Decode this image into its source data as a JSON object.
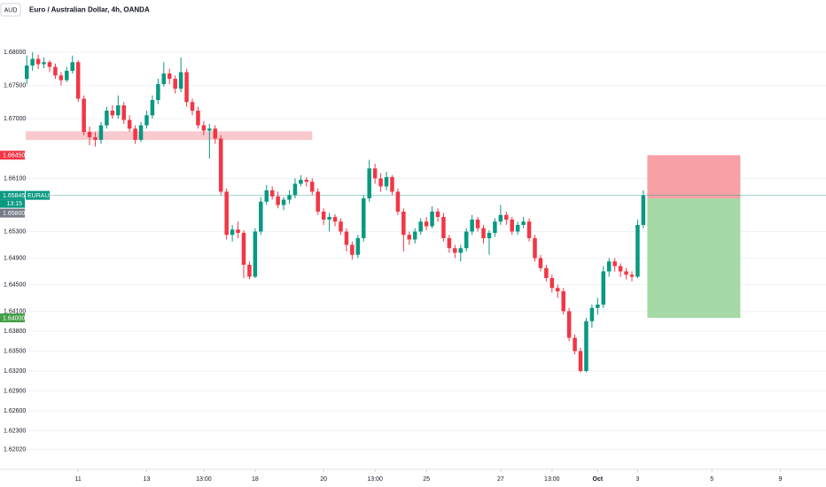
{
  "chart_data": {
    "type": "candlestick",
    "currency": "AUD",
    "title": "Euro / Australian Dollar, 4h, OANDA",
    "up_color": "#089981",
    "down_color": "#f23645",
    "grid": true,
    "ylim": [
      1.6172,
      1.6852
    ],
    "yticks": [
      {
        "value": 1.68,
        "label": "1.68000"
      },
      {
        "value": 1.675,
        "label": "1.67500"
      },
      {
        "value": 1.67,
        "label": "1.67000"
      },
      {
        "value": 1.661,
        "label": "1.66100"
      },
      {
        "value": 1.653,
        "label": "1.65300"
      },
      {
        "value": 1.649,
        "label": "1.64900"
      },
      {
        "value": 1.645,
        "label": "1.64500"
      },
      {
        "value": 1.641,
        "label": "1.64100"
      },
      {
        "value": 1.638,
        "label": "1.63800"
      },
      {
        "value": 1.635,
        "label": "1.63500"
      },
      {
        "value": 1.632,
        "label": "1.63200"
      },
      {
        "value": 1.629,
        "label": "1.62900"
      },
      {
        "value": 1.626,
        "label": "1.62600"
      },
      {
        "value": 1.623,
        "label": "1.62300"
      },
      {
        "value": 1.6202,
        "label": "1.62020"
      }
    ],
    "xlim": [
      -0.5,
      140
    ],
    "xticks": [
      {
        "value": 9,
        "label": "11"
      },
      {
        "value": 21,
        "label": "13"
      },
      {
        "value": 31,
        "label": "13:00"
      },
      {
        "value": 40,
        "label": "18"
      },
      {
        "value": 52,
        "label": "20"
      },
      {
        "value": 61,
        "label": "13:00"
      },
      {
        "value": 70,
        "label": "25"
      },
      {
        "value": 83,
        "label": "27"
      },
      {
        "value": 92,
        "label": "13:00"
      },
      {
        "value": 100,
        "label": "Oct"
      },
      {
        "value": 107,
        "label": "3"
      },
      {
        "value": 120,
        "label": "5"
      },
      {
        "value": 132,
        "label": "9"
      }
    ],
    "candles": [
      [
        1.676,
        1.6795,
        1.6752,
        1.678
      ],
      [
        1.678,
        1.68,
        1.6772,
        1.679
      ],
      [
        1.679,
        1.6796,
        1.6775,
        1.6782
      ],
      [
        1.6782,
        1.6792,
        1.6776,
        1.6785
      ],
      [
        1.6785,
        1.6788,
        1.677,
        1.6778
      ],
      [
        1.6778,
        1.6783,
        1.676,
        1.6765
      ],
      [
        1.6765,
        1.677,
        1.675,
        1.6758
      ],
      [
        1.6758,
        1.6778,
        1.6755,
        1.6772
      ],
      [
        1.6772,
        1.6795,
        1.6768,
        1.6785
      ],
      [
        1.6785,
        1.6788,
        1.6725,
        1.673
      ],
      [
        1.673,
        1.6735,
        1.6675,
        1.668
      ],
      [
        1.668,
        1.6688,
        1.666,
        1.6672
      ],
      [
        1.6672,
        1.668,
        1.6658,
        1.6668
      ],
      [
        1.6668,
        1.6695,
        1.6662,
        1.669
      ],
      [
        1.669,
        1.6718,
        1.6685,
        1.6712
      ],
      [
        1.6712,
        1.672,
        1.67,
        1.6705
      ],
      [
        1.6705,
        1.6735,
        1.67,
        1.672
      ],
      [
        1.672,
        1.6725,
        1.6692,
        1.6698
      ],
      [
        1.6698,
        1.6705,
        1.668,
        1.6685
      ],
      [
        1.6685,
        1.669,
        1.6662,
        1.6668
      ],
      [
        1.6668,
        1.6695,
        1.6665,
        1.669
      ],
      [
        1.669,
        1.6712,
        1.6685,
        1.6705
      ],
      [
        1.6705,
        1.6735,
        1.67,
        1.6728
      ],
      [
        1.6728,
        1.676,
        1.6722,
        1.6752
      ],
      [
        1.6752,
        1.6785,
        1.6748,
        1.6768
      ],
      [
        1.6768,
        1.6775,
        1.6752,
        1.676
      ],
      [
        1.676,
        1.6765,
        1.6738,
        1.6745
      ],
      [
        1.6745,
        1.6792,
        1.674,
        1.677
      ],
      [
        1.677,
        1.6775,
        1.6718,
        1.6725
      ],
      [
        1.6725,
        1.673,
        1.6705,
        1.6712
      ],
      [
        1.6712,
        1.6718,
        1.6685,
        1.669
      ],
      [
        1.669,
        1.6696,
        1.6675,
        1.6682
      ],
      [
        1.6682,
        1.6692,
        1.664,
        1.6685
      ],
      [
        1.6685,
        1.669,
        1.6662,
        1.667
      ],
      [
        1.667,
        1.6675,
        1.6585,
        1.659
      ],
      [
        1.659,
        1.6595,
        1.6518,
        1.6525
      ],
      [
        1.6525,
        1.654,
        1.6515,
        1.6533
      ],
      [
        1.6533,
        1.6545,
        1.652,
        1.6528
      ],
      [
        1.6528,
        1.6532,
        1.646,
        1.648
      ],
      [
        1.648,
        1.6485,
        1.6458,
        1.6462
      ],
      [
        1.6462,
        1.6535,
        1.646,
        1.653
      ],
      [
        1.653,
        1.6582,
        1.6525,
        1.6575
      ],
      [
        1.6575,
        1.66,
        1.657,
        1.6592
      ],
      [
        1.6592,
        1.6598,
        1.6578,
        1.6583
      ],
      [
        1.6583,
        1.659,
        1.6565,
        1.657
      ],
      [
        1.657,
        1.6582,
        1.6562,
        1.6578
      ],
      [
        1.6578,
        1.6592,
        1.6572,
        1.6585
      ],
      [
        1.6585,
        1.661,
        1.658,
        1.6602
      ],
      [
        1.6602,
        1.6615,
        1.6598,
        1.6608
      ],
      [
        1.6608,
        1.6612,
        1.6598,
        1.6605
      ],
      [
        1.6605,
        1.661,
        1.6585,
        1.659
      ],
      [
        1.659,
        1.6595,
        1.6555,
        1.656
      ],
      [
        1.656,
        1.6565,
        1.654,
        1.6548
      ],
      [
        1.6548,
        1.6558,
        1.653,
        1.6552
      ],
      [
        1.6552,
        1.6556,
        1.6538,
        1.6545
      ],
      [
        1.6545,
        1.655,
        1.6525,
        1.653
      ],
      [
        1.653,
        1.6535,
        1.65,
        1.651
      ],
      [
        1.651,
        1.6515,
        1.6488,
        1.6495
      ],
      [
        1.6495,
        1.6525,
        1.649,
        1.652
      ],
      [
        1.652,
        1.6585,
        1.6515,
        1.658
      ],
      [
        1.658,
        1.6638,
        1.6575,
        1.6625
      ],
      [
        1.6625,
        1.6632,
        1.6602,
        1.661
      ],
      [
        1.661,
        1.6618,
        1.659,
        1.6598
      ],
      [
        1.6598,
        1.662,
        1.6592,
        1.6612
      ],
      [
        1.6612,
        1.6615,
        1.6585,
        1.659
      ],
      [
        1.659,
        1.6595,
        1.6555,
        1.656
      ],
      [
        1.656,
        1.6565,
        1.65,
        1.6525
      ],
      [
        1.6525,
        1.653,
        1.651,
        1.6518
      ],
      [
        1.6518,
        1.6535,
        1.6512,
        1.653
      ],
      [
        1.653,
        1.655,
        1.6525,
        1.6545
      ],
      [
        1.6545,
        1.6552,
        1.6532,
        1.6538
      ],
      [
        1.6538,
        1.6568,
        1.6535,
        1.656
      ],
      [
        1.656,
        1.6565,
        1.6545,
        1.6552
      ],
      [
        1.6552,
        1.6558,
        1.6515,
        1.652
      ],
      [
        1.652,
        1.6525,
        1.6498,
        1.6505
      ],
      [
        1.6505,
        1.651,
        1.649,
        1.6498
      ],
      [
        1.6498,
        1.651,
        1.6485,
        1.6505
      ],
      [
        1.6505,
        1.6535,
        1.65,
        1.653
      ],
      [
        1.653,
        1.6555,
        1.6525,
        1.6548
      ],
      [
        1.6548,
        1.6552,
        1.653,
        1.6535
      ],
      [
        1.6535,
        1.654,
        1.6512,
        1.652
      ],
      [
        1.652,
        1.6532,
        1.6495,
        1.6528
      ],
      [
        1.6528,
        1.655,
        1.6522,
        1.6545
      ],
      [
        1.6545,
        1.657,
        1.654,
        1.6555
      ],
      [
        1.6555,
        1.656,
        1.654,
        1.6548
      ],
      [
        1.6548,
        1.6552,
        1.6525,
        1.653
      ],
      [
        1.653,
        1.6545,
        1.6525,
        1.654
      ],
      [
        1.654,
        1.6552,
        1.6535,
        1.6545
      ],
      [
        1.6545,
        1.655,
        1.6515,
        1.652
      ],
      [
        1.652,
        1.6525,
        1.6485,
        1.649
      ],
      [
        1.649,
        1.6495,
        1.647,
        1.6475
      ],
      [
        1.6475,
        1.648,
        1.6455,
        1.646
      ],
      [
        1.646,
        1.6465,
        1.6438,
        1.6445
      ],
      [
        1.6445,
        1.645,
        1.643,
        1.644
      ],
      [
        1.644,
        1.6445,
        1.6405,
        1.641
      ],
      [
        1.641,
        1.6415,
        1.6365,
        1.637
      ],
      [
        1.637,
        1.6375,
        1.6345,
        1.635
      ],
      [
        1.635,
        1.6355,
        1.6318,
        1.632
      ],
      [
        1.632,
        1.64,
        1.6318,
        1.6395
      ],
      [
        1.6395,
        1.642,
        1.6385,
        1.6415
      ],
      [
        1.6415,
        1.643,
        1.6405,
        1.642
      ],
      [
        1.642,
        1.6478,
        1.6415,
        1.647
      ],
      [
        1.647,
        1.649,
        1.6462,
        1.6485
      ],
      [
        1.6485,
        1.649,
        1.647,
        1.6478
      ],
      [
        1.6478,
        1.6482,
        1.6462,
        1.647
      ],
      [
        1.647,
        1.6475,
        1.6458,
        1.6465
      ],
      [
        1.6465,
        1.647,
        1.6455,
        1.6462
      ],
      [
        1.6462,
        1.6548,
        1.646,
        1.654
      ],
      [
        1.654,
        1.6592,
        1.6535,
        1.65845
      ]
    ],
    "zone": {
      "top": 1.6681,
      "bottom": 1.6668,
      "start": -0.2,
      "end": 50,
      "color": "#f8c9cf"
    },
    "last_price": {
      "value": 1.65845,
      "label": "1.65845",
      "symbol": "EURAUD",
      "countdown": "13:15"
    },
    "position": {
      "start": 108.7,
      "end": 125,
      "entry": {
        "value": 1.658,
        "label": "1.65800"
      },
      "stop": {
        "value": 1.6645,
        "label": "1.66450"
      },
      "target": {
        "value": 1.64,
        "label": "1.64000"
      },
      "stop_color": "#f7a1a6",
      "target_color": "#a5d9a5"
    }
  }
}
